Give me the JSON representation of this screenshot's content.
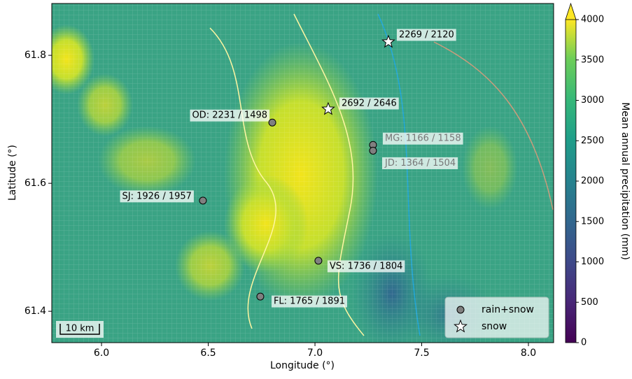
{
  "chart_data": {
    "type": "scatter",
    "xlabel": "Longitude (°)",
    "ylabel": "Latitude (°)",
    "xlim": [
      5.767,
      8.118
    ],
    "ylim": [
      61.351,
      61.881
    ],
    "xticks": [
      {
        "value": 6,
        "label": "6.0"
      },
      {
        "value": 6.5,
        "label": "6.5"
      },
      {
        "value": 7,
        "label": "7.0"
      },
      {
        "value": 7.5,
        "label": "7.5"
      },
      {
        "value": 8,
        "label": "8.0"
      }
    ],
    "yticks": [
      61.4,
      61.6,
      61.8
    ],
    "series": [
      {
        "name": "rain+snow",
        "color": "#808080",
        "x": [
          6.8,
          7.272,
          7.272,
          6.475,
          7.016,
          6.744
        ],
        "y": [
          61.695,
          61.66,
          61.651,
          61.573,
          61.479,
          61.423
        ],
        "labels": [
          "OD: 2231 / 1498",
          "MG: 1166 / 1158",
          "JD: 1364 / 1504",
          "SJ: 1926 / 1957",
          "VS: 1736 / 1804",
          "FL: 1765 / 1891"
        ]
      },
      {
        "name": "snow",
        "color": "#ffffff",
        "x": [
          7.344,
          7.062
        ],
        "y": [
          61.821,
          61.716
        ],
        "labels": [
          "2269 / 2120",
          "2692 / 2646"
        ]
      }
    ],
    "colorbar": {
      "label": "Mean annual precipitation (mm)",
      "lim": [
        0,
        4000
      ],
      "ticks": [
        0,
        500,
        1000,
        1500,
        2000,
        2500,
        3000,
        3500,
        4000
      ]
    },
    "scalebar": "10 km"
  }
}
